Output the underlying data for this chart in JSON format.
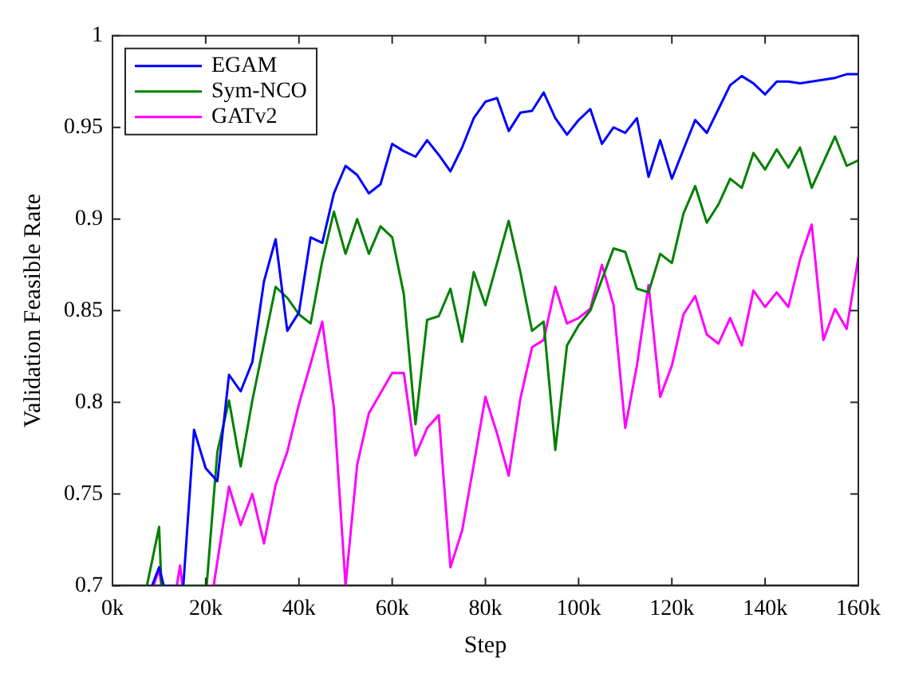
{
  "chart_data": {
    "type": "line",
    "xlabel": "Step",
    "ylabel": "Validation Feasible Rate",
    "xlim": [
      0,
      160
    ],
    "ylim": [
      0.7,
      1
    ],
    "xticks": [
      {
        "value": 0,
        "label": "0k"
      },
      {
        "value": 20,
        "label": "20k"
      },
      {
        "value": 40,
        "label": "40k"
      },
      {
        "value": 60,
        "label": "60k"
      },
      {
        "value": 80,
        "label": "80k"
      },
      {
        "value": 100,
        "label": "100k"
      },
      {
        "value": 120,
        "label": "120k"
      },
      {
        "value": 140,
        "label": "140k"
      },
      {
        "value": 160,
        "label": "160k"
      }
    ],
    "yticks": [
      0.7,
      0.75,
      0.8,
      0.85,
      0.9,
      0.95,
      1
    ],
    "grid": false,
    "legend": "top left",
    "marker": "none",
    "line_style": "solid",
    "series": [
      {
        "name": "EGAM",
        "color": "#0000ff",
        "x": [
          8.5,
          10,
          11,
          15.2,
          17.5,
          20,
          22.5,
          25,
          27.5,
          30,
          32.5,
          35,
          37.5,
          40,
          42.5,
          45,
          47.5,
          50,
          52.5,
          55,
          57.5,
          60,
          62.5,
          65,
          67.5,
          70,
          72.5,
          75,
          77.5,
          80,
          82.5,
          85,
          87.5,
          90,
          92.5,
          95,
          97.5,
          100,
          102.5,
          105,
          107.5,
          110,
          112.5,
          115,
          117.5,
          120,
          122.5,
          125,
          127.5,
          130,
          132.5,
          135,
          137.5,
          140,
          142.5,
          145,
          147.5,
          150,
          152.5,
          155,
          157.5,
          160
        ],
        "values": [
          0.7,
          0.71,
          0.7,
          0.7,
          0.785,
          0.764,
          0.757,
          0.815,
          0.806,
          0.822,
          0.866,
          0.889,
          0.839,
          0.849,
          0.89,
          0.887,
          0.914,
          0.929,
          0.924,
          0.914,
          0.919,
          0.941,
          0.937,
          0.934,
          0.943,
          0.935,
          0.926,
          0.939,
          0.955,
          0.964,
          0.966,
          0.948,
          0.958,
          0.959,
          0.969,
          0.955,
          0.946,
          0.954,
          0.96,
          0.941,
          0.95,
          0.947,
          0.955,
          0.923,
          0.943,
          0.922,
          0.938,
          0.954,
          0.947,
          0.96,
          0.973,
          0.978,
          0.974,
          0.968,
          0.975,
          0.975,
          0.974,
          0.975,
          0.976,
          0.977,
          0.979,
          0.979
        ]
      },
      {
        "name": "Sym-NCO",
        "color": "#008000",
        "x": [
          7.4,
          10,
          10.5,
          20.2,
          22.5,
          25,
          27.5,
          30,
          32.5,
          35,
          37.5,
          40,
          42.5,
          45,
          47.5,
          50,
          52.5,
          55,
          57.5,
          60,
          62.5,
          65,
          67.5,
          70,
          72.5,
          75,
          77.5,
          80,
          82.5,
          85,
          87.5,
          90,
          92.5,
          95,
          97.5,
          100,
          102.5,
          105,
          107.5,
          110,
          112.5,
          115,
          117.5,
          120,
          122.5,
          125,
          127.5,
          130,
          132.5,
          135,
          137.5,
          140,
          142.5,
          145,
          147.5,
          150,
          152.5,
          155,
          157.5,
          160
        ],
        "values": [
          0.7,
          0.732,
          0.7,
          0.7,
          0.773,
          0.801,
          0.765,
          0.801,
          0.832,
          0.863,
          0.857,
          0.848,
          0.843,
          0.877,
          0.904,
          0.881,
          0.9,
          0.881,
          0.896,
          0.89,
          0.859,
          0.788,
          0.845,
          0.847,
          0.862,
          0.833,
          0.871,
          0.853,
          0.876,
          0.899,
          0.871,
          0.839,
          0.844,
          0.774,
          0.831,
          0.842,
          0.85,
          0.867,
          0.884,
          0.882,
          0.862,
          0.86,
          0.881,
          0.876,
          0.903,
          0.918,
          0.898,
          0.908,
          0.922,
          0.917,
          0.936,
          0.927,
          0.938,
          0.928,
          0.939,
          0.917,
          0.931,
          0.945,
          0.929,
          0.932
        ]
      },
      {
        "name": "GATv2",
        "color": "#ff00ff",
        "x": [
          8.8,
          10,
          10.5,
          13.8,
          14.5,
          15,
          21.7,
          25,
          27.5,
          30,
          32.5,
          35,
          37.5,
          40,
          42.5,
          45,
          47.5,
          50,
          52.5,
          55,
          57.5,
          60,
          62.5,
          65,
          67.5,
          70,
          72.5,
          75,
          77.5,
          80,
          82.5,
          85,
          87.5,
          90,
          92.5,
          95,
          97.5,
          100,
          102.5,
          105,
          107.5,
          110,
          112.5,
          115,
          117.5,
          120,
          122.5,
          125,
          127.5,
          130,
          132.5,
          135,
          137.5,
          140,
          142.5,
          145,
          147.5,
          150,
          152.5,
          155,
          157.5,
          160
        ],
        "values": [
          0.7,
          0.709,
          0.7,
          0.7,
          0.711,
          0.7,
          0.7,
          0.754,
          0.733,
          0.75,
          0.723,
          0.755,
          0.773,
          0.799,
          0.821,
          0.844,
          0.797,
          0.7,
          0.766,
          0.794,
          0.805,
          0.816,
          0.816,
          0.771,
          0.786,
          0.793,
          0.71,
          0.73,
          0.766,
          0.803,
          0.783,
          0.76,
          0.802,
          0.83,
          0.834,
          0.863,
          0.843,
          0.846,
          0.851,
          0.875,
          0.853,
          0.786,
          0.82,
          0.864,
          0.803,
          0.82,
          0.848,
          0.858,
          0.837,
          0.832,
          0.846,
          0.831,
          0.861,
          0.852,
          0.86,
          0.852,
          0.878,
          0.897,
          0.834,
          0.851,
          0.84,
          0.879
        ]
      }
    ]
  }
}
